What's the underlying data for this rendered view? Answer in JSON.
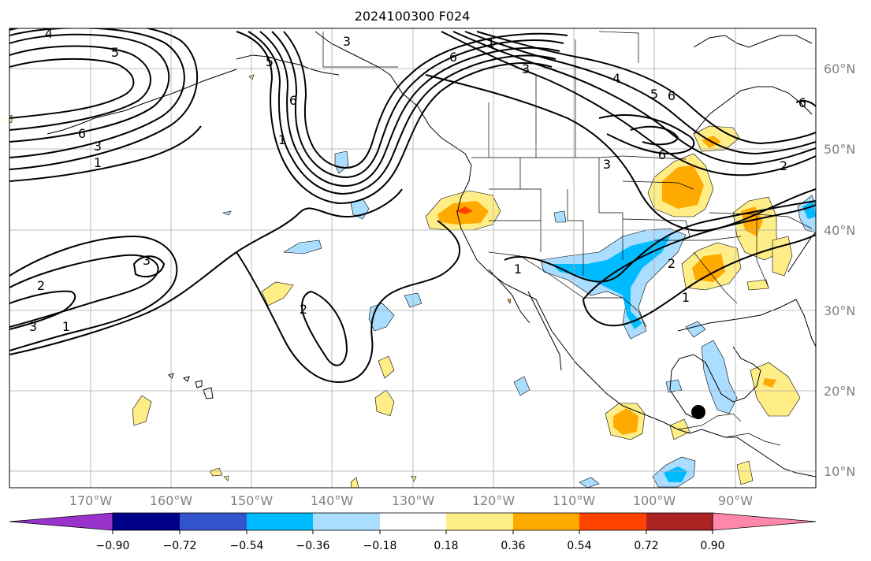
{
  "title": "2024100300 F024",
  "map": {
    "lat_labels": [
      "60°N",
      "50°N",
      "40°N",
      "30°N",
      "20°N",
      "10°N"
    ],
    "lon_labels": [
      "170°W",
      "160°W",
      "150°W",
      "140°W",
      "130°W",
      "120°W",
      "110°W",
      "100°W",
      "90°W"
    ],
    "contour_labels": [
      "1",
      "2",
      "3",
      "4",
      "5",
      "6"
    ],
    "contour_color": "#000000",
    "marker": "storm-center-dot"
  },
  "colorbar": {
    "colors": [
      "#9933cc",
      "#000088",
      "#3355cc",
      "#00bbff",
      "#aaddff",
      "#ffffff",
      "#ffee88",
      "#ffaa00",
      "#ff4400",
      "#aa2222",
      "#ff88aa"
    ],
    "ticks": [
      "−0.90",
      "−0.72",
      "−0.54",
      "−0.36",
      "−0.18",
      "0.18",
      "0.36",
      "0.54",
      "0.72",
      "0.90"
    ]
  }
}
